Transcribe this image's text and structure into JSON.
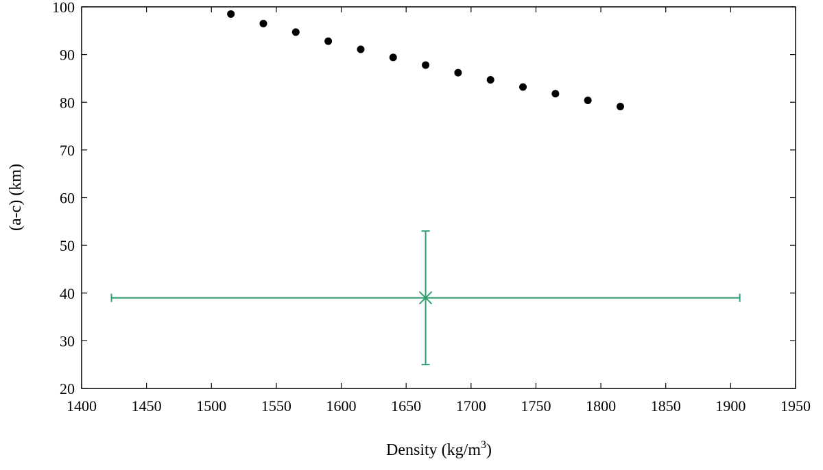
{
  "chart_data": {
    "type": "scatter",
    "xlabel": "Density (kg/m",
    "xlabel_sup": "3",
    "xlabel_tail": ")",
    "ylabel": "(a-c) (km)",
    "xlim": [
      1400,
      1950
    ],
    "ylim": [
      20,
      100
    ],
    "xticks": [
      1400,
      1450,
      1500,
      1550,
      1600,
      1650,
      1700,
      1750,
      1800,
      1850,
      1900,
      1950
    ],
    "yticks": [
      20,
      30,
      40,
      50,
      60,
      70,
      80,
      90,
      100
    ],
    "grid": false,
    "series": [
      {
        "style": "filled-circle",
        "color": "#000000",
        "x": [
          1515,
          1540,
          1565,
          1590,
          1615,
          1640,
          1665,
          1690,
          1715,
          1740,
          1765,
          1790,
          1815
        ],
        "y": [
          98.5,
          96.5,
          94.7,
          92.8,
          91.1,
          89.4,
          87.8,
          86.2,
          84.7,
          83.2,
          81.8,
          80.4,
          79.1
        ]
      },
      {
        "style": "cross-with-errorbars",
        "color": "#2e9e6e",
        "x": [
          1665
        ],
        "y": [
          39
        ],
        "x_err_low": [
          1423
        ],
        "x_err_high": [
          1907
        ],
        "y_err_low": [
          25
        ],
        "y_err_high": [
          53
        ]
      }
    ]
  }
}
